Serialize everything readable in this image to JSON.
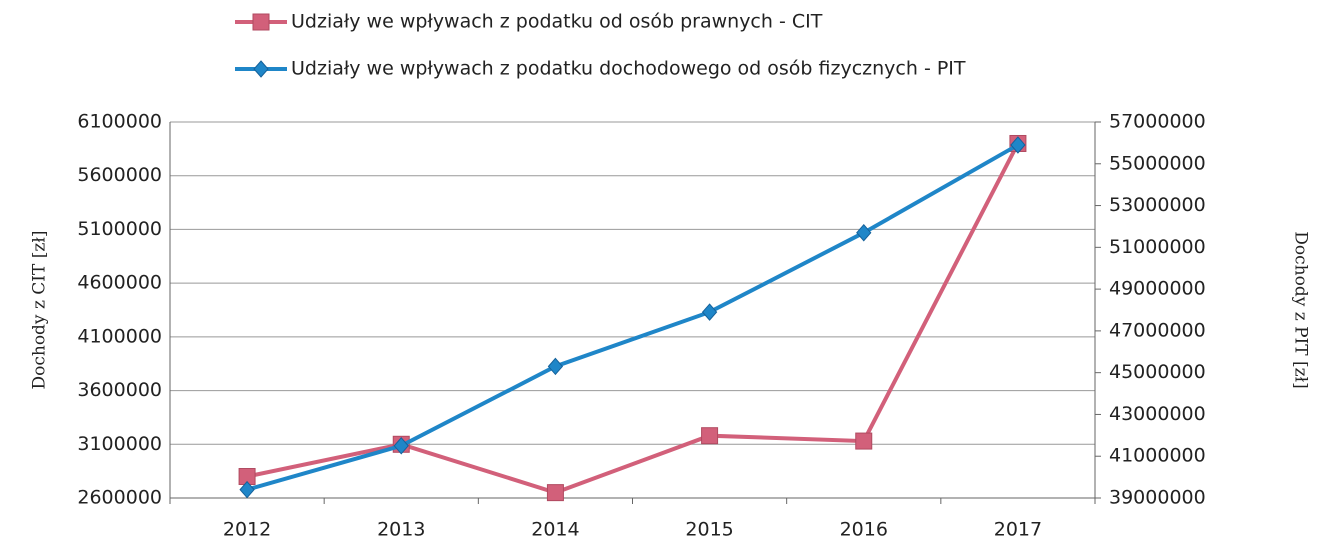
{
  "chart_data": {
    "type": "line",
    "categories": [
      "2012",
      "2013",
      "2014",
      "2015",
      "2016",
      "2017"
    ],
    "series": [
      {
        "name": "Udziały we wpływach z podatku od osób prawnych - CIT",
        "color": "#d2607a",
        "marker": "square",
        "values": [
          2800000,
          3100000,
          2650000,
          3180000,
          3130000,
          5900000
        ]
      },
      {
        "name": "Udziały we wpływach z podatku dochodowego od osób fizycznych - PIT",
        "color": "#1f86c8",
        "marker": "diamond",
        "axis": "y2",
        "values": [
          39400000,
          41500000,
          45300000,
          47900000,
          51700000,
          55900000
        ]
      }
    ],
    "ylabel": "Dochody z CIT [zł]",
    "y2label": "Dochody z PIT [zł]",
    "ylim": [
      2600000,
      6100000
    ],
    "yticks": [
      2600000,
      3100000,
      3600000,
      4100000,
      4600000,
      5100000,
      5600000,
      6100000
    ],
    "y2lim": [
      39000000,
      57000000
    ],
    "y2ticks": [
      39000000,
      41000000,
      43000000,
      45000000,
      47000000,
      49000000,
      51000000,
      53000000,
      55000000,
      57000000
    ],
    "grid": true,
    "legend": "top"
  }
}
